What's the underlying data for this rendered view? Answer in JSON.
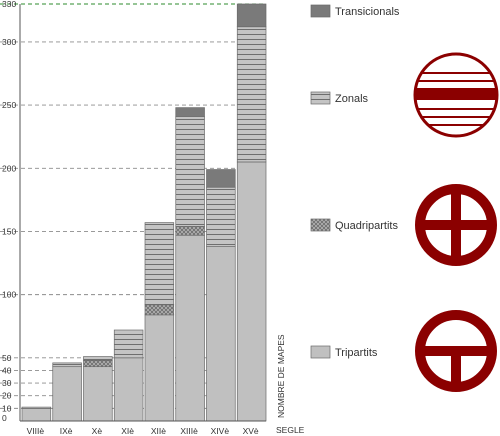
{
  "chart_data": {
    "type": "bar",
    "stacked": true,
    "categories": [
      "VIIIè",
      "IXè",
      "Xè",
      "XIè",
      "XIIè",
      "XIIIè",
      "XIVè",
      "XVè"
    ],
    "series": [
      {
        "name": "Tripartits",
        "values": [
          10,
          43,
          43,
          50,
          84,
          147,
          138,
          205
        ],
        "color": "#c0c0c0",
        "pattern": "solid"
      },
      {
        "name": "Quadripartits",
        "values": [
          0,
          0,
          5,
          0,
          8,
          7,
          0,
          0
        ],
        "color": "#9e9e9e",
        "pattern": "crosshatch"
      },
      {
        "name": "Zonals",
        "values": [
          1,
          3,
          3,
          22,
          65,
          87,
          47,
          107
        ],
        "color": "#c0c0c0",
        "pattern": "horizontal-lines"
      },
      {
        "name": "Transicionals",
        "values": [
          0,
          0,
          0,
          0,
          0,
          7,
          14,
          18
        ],
        "color": "#7a7a7a",
        "pattern": "solid"
      }
    ],
    "xlabel": "SEGLE",
    "ylabel": "NOMBRE DE MAPES",
    "ylim": [
      0,
      330
    ],
    "yticks": [
      0,
      10,
      20,
      30,
      40,
      50,
      100,
      150,
      200,
      250,
      300,
      330
    ],
    "grid": true,
    "legend_position": "right",
    "legend_symbols": [
      {
        "series": "Transicionals",
        "icon": "zonal-map-icon"
      },
      {
        "series": "Zonals",
        "icon": "quadripartite-map-icon"
      },
      {
        "series": "Quadripartits",
        "icon": "tripartite-map-icon"
      }
    ],
    "accent_color": "#8b0000",
    "top_gridline_color": "#2e8b2e"
  }
}
